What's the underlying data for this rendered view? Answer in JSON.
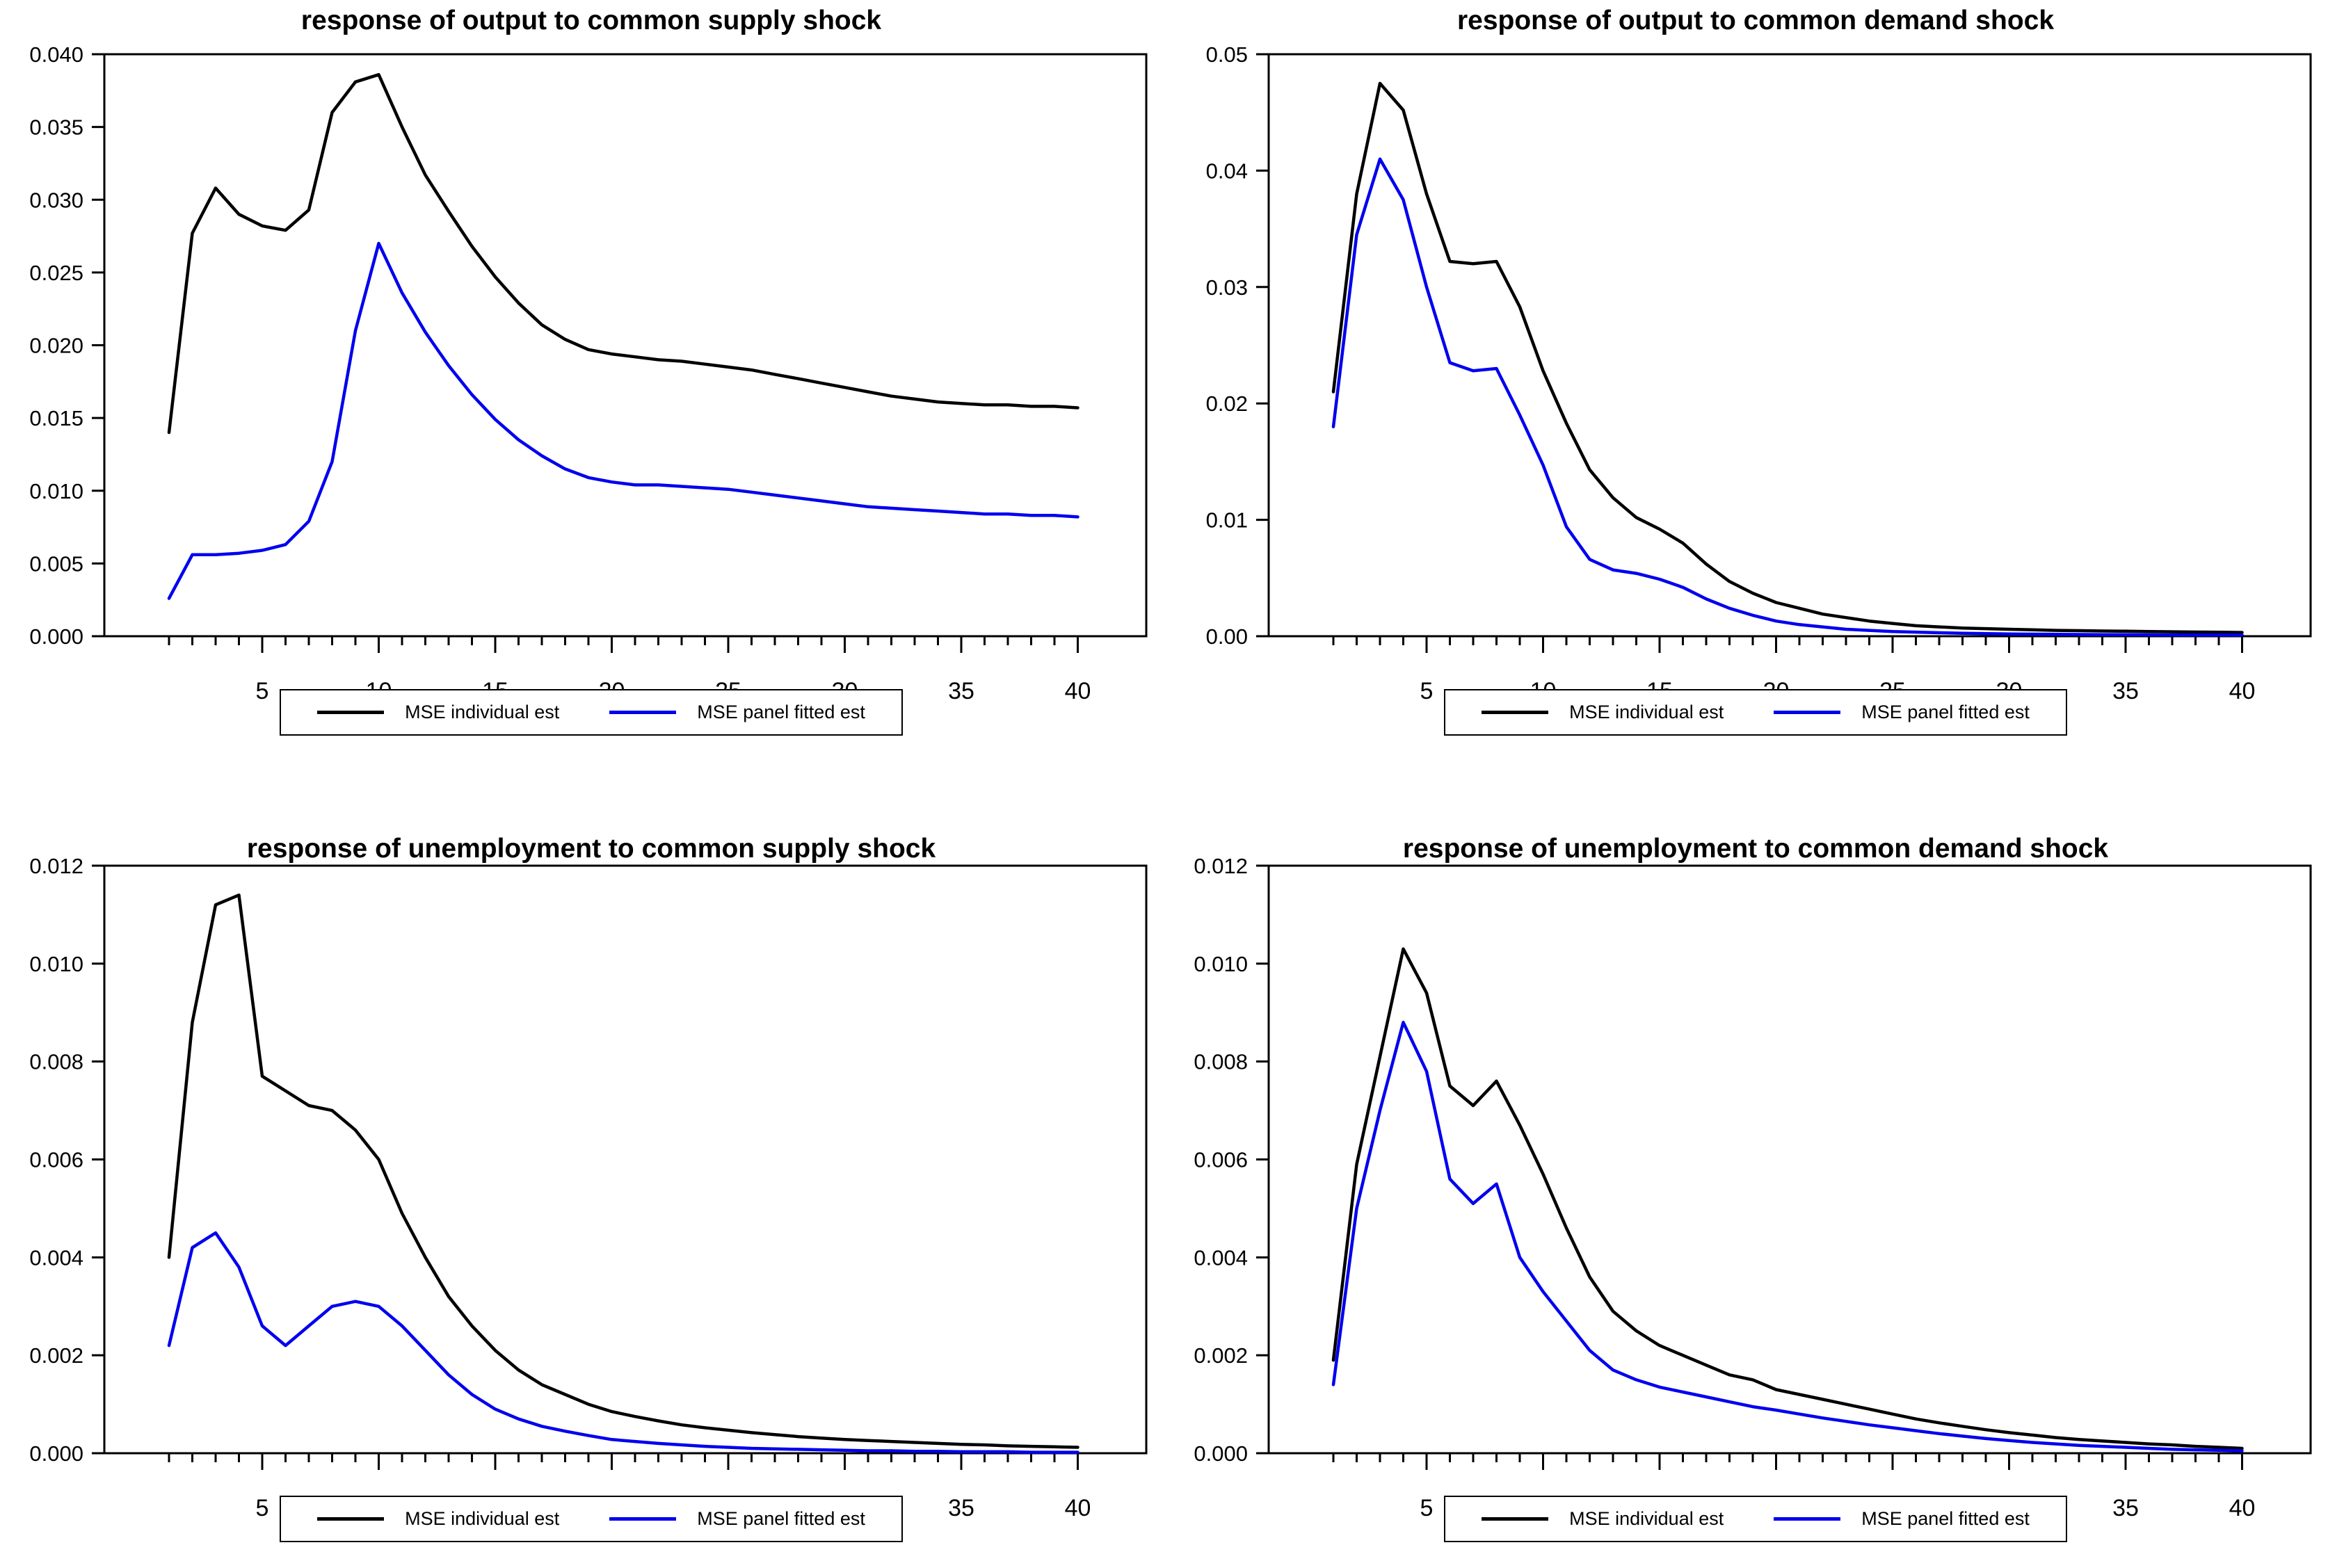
{
  "colors": {
    "background": "#ffffff",
    "frame": "#000000",
    "series_individual": "#000000",
    "series_panel_fitted": "#0000ee"
  },
  "legend": {
    "items": [
      "MSE individual est",
      "MSE panel fitted est"
    ]
  },
  "chart_data": [
    {
      "id": "output-supply",
      "type": "line",
      "title": "response of output to common supply shock",
      "xlabel": "",
      "ylabel": "",
      "x_range": [
        1,
        40
      ],
      "x_step": 1,
      "xticks_major": [
        5,
        10,
        15,
        20,
        25,
        30,
        35,
        40
      ],
      "xticks_minor_every": 1,
      "ylim": [
        0,
        0.04
      ],
      "ytick_labels": [
        "0.040",
        "0.035",
        "0.030",
        "0.025",
        "0.020",
        "0.015",
        "0.010",
        "0.005",
        "0.000"
      ],
      "grid": false,
      "legend_position": "bottom-center",
      "series": [
        {
          "name": "MSE individual est",
          "color": "#000000",
          "values": [
            0.014,
            0.0277,
            0.0308,
            0.029,
            0.0282,
            0.0279,
            0.0293,
            0.036,
            0.0381,
            0.0386,
            0.035,
            0.0317,
            0.0292,
            0.0268,
            0.0247,
            0.0229,
            0.0214,
            0.0204,
            0.0197,
            0.0194,
            0.0192,
            0.019,
            0.0189,
            0.0187,
            0.0185,
            0.0183,
            0.018,
            0.0177,
            0.0174,
            0.0171,
            0.0168,
            0.0165,
            0.0163,
            0.0161,
            0.016,
            0.0159,
            0.0159,
            0.0158,
            0.0158,
            0.0157
          ]
        },
        {
          "name": "MSE panel fitted est",
          "color": "#0000ee",
          "values": [
            0.0026,
            0.0056,
            0.0056,
            0.0057,
            0.0059,
            0.0063,
            0.0079,
            0.012,
            0.021,
            0.027,
            0.0236,
            0.0209,
            0.0186,
            0.0166,
            0.0149,
            0.0135,
            0.0124,
            0.0115,
            0.0109,
            0.0106,
            0.0104,
            0.0104,
            0.0103,
            0.0102,
            0.0101,
            0.0099,
            0.0097,
            0.0095,
            0.0093,
            0.0091,
            0.0089,
            0.0088,
            0.0087,
            0.0086,
            0.0085,
            0.0084,
            0.0084,
            0.0083,
            0.0083,
            0.0082
          ]
        }
      ]
    },
    {
      "id": "output-demand",
      "type": "line",
      "title": "response of output to common demand shock",
      "xlabel": "",
      "ylabel": "",
      "x_range": [
        1,
        40
      ],
      "x_step": 1,
      "xticks_major": [
        5,
        10,
        15,
        20,
        25,
        30,
        35,
        40
      ],
      "xticks_minor_every": 1,
      "ylim": [
        0,
        0.05
      ],
      "ytick_labels": [
        "0.05",
        "0.04",
        "0.03",
        "0.02",
        "0.01",
        "0.00"
      ],
      "grid": false,
      "legend_position": "bottom-center",
      "series": [
        {
          "name": "MSE individual est",
          "color": "#000000",
          "values": [
            0.021,
            0.038,
            0.0475,
            0.0452,
            0.038,
            0.0322,
            0.032,
            0.0322,
            0.0283,
            0.0228,
            0.0183,
            0.0143,
            0.0119,
            0.0102,
            0.0092,
            0.008,
            0.0062,
            0.0047,
            0.0037,
            0.0029,
            0.0024,
            0.0019,
            0.0016,
            0.0013,
            0.0011,
            0.0009,
            0.0008,
            0.0007,
            0.00065,
            0.0006,
            0.00055,
            0.0005,
            0.00048,
            0.00045,
            0.00043,
            0.0004,
            0.00038,
            0.00036,
            0.00034,
            0.00032
          ]
        },
        {
          "name": "MSE panel fitted est",
          "color": "#0000ee",
          "values": [
            0.018,
            0.0345,
            0.041,
            0.0375,
            0.03,
            0.0235,
            0.0228,
            0.023,
            0.019,
            0.0147,
            0.0094,
            0.0066,
            0.0057,
            0.0054,
            0.0049,
            0.0042,
            0.0032,
            0.0024,
            0.0018,
            0.0013,
            0.001,
            0.0008,
            0.0006,
            0.0005,
            0.0004,
            0.00035,
            0.0003,
            0.00025,
            0.00022,
            0.0002,
            0.00018,
            0.00016,
            0.00015,
            0.00014,
            0.00013,
            0.00012,
            0.00011,
            0.0001,
            0.0001,
            0.0001
          ]
        }
      ]
    },
    {
      "id": "unemployment-supply",
      "type": "line",
      "title": "response of unemployment to common supply shock",
      "xlabel": "",
      "ylabel": "",
      "x_range": [
        1,
        40
      ],
      "x_step": 1,
      "xticks_major": [
        5,
        10,
        15,
        20,
        25,
        30,
        35,
        40
      ],
      "xticks_minor_every": 1,
      "ylim": [
        0,
        0.012
      ],
      "ytick_labels": [
        "0.012",
        "0.010",
        "0.008",
        "0.006",
        "0.004",
        "0.002",
        "0.000"
      ],
      "grid": false,
      "legend_position": "bottom-center",
      "series": [
        {
          "name": "MSE individual est",
          "color": "#000000",
          "values": [
            0.004,
            0.0088,
            0.0112,
            0.0114,
            0.0077,
            0.0074,
            0.0071,
            0.007,
            0.0066,
            0.006,
            0.0049,
            0.004,
            0.0032,
            0.0026,
            0.0021,
            0.0017,
            0.0014,
            0.0012,
            0.001,
            0.00085,
            0.00075,
            0.00066,
            0.00058,
            0.00052,
            0.00047,
            0.00042,
            0.00038,
            0.00034,
            0.00031,
            0.00028,
            0.00026,
            0.00024,
            0.00022,
            0.0002,
            0.00018,
            0.00017,
            0.00015,
            0.00014,
            0.00013,
            0.00012
          ]
        },
        {
          "name": "MSE panel fitted est",
          "color": "#0000ee",
          "values": [
            0.0022,
            0.0042,
            0.0045,
            0.0038,
            0.0026,
            0.0022,
            0.0026,
            0.003,
            0.0031,
            0.003,
            0.0026,
            0.0021,
            0.0016,
            0.0012,
            0.0009,
            0.0007,
            0.00055,
            0.00045,
            0.00036,
            0.00028,
            0.00024,
            0.0002,
            0.00017,
            0.00014,
            0.00012,
            0.0001,
            9e-05,
            8e-05,
            7e-05,
            6e-05,
            5e-05,
            5e-05,
            4e-05,
            4e-05,
            3e-05,
            3e-05,
            3e-05,
            2e-05,
            2e-05,
            2e-05
          ]
        }
      ]
    },
    {
      "id": "unemployment-demand",
      "type": "line",
      "title": "response of unemployment to common demand shock",
      "xlabel": "",
      "ylabel": "",
      "x_range": [
        1,
        40
      ],
      "x_step": 1,
      "xticks_major": [
        5,
        10,
        15,
        20,
        25,
        30,
        35,
        40
      ],
      "xticks_minor_every": 1,
      "ylim": [
        0,
        0.012
      ],
      "ytick_labels": [
        "0.012",
        "0.010",
        "0.008",
        "0.006",
        "0.004",
        "0.002",
        "0.000"
      ],
      "grid": false,
      "legend_position": "bottom-center",
      "series": [
        {
          "name": "MSE individual est",
          "color": "#000000",
          "values": [
            0.0019,
            0.0059,
            0.0081,
            0.0103,
            0.0094,
            0.0075,
            0.0071,
            0.0076,
            0.0067,
            0.0057,
            0.0046,
            0.0036,
            0.0029,
            0.0025,
            0.0022,
            0.002,
            0.0018,
            0.0016,
            0.0015,
            0.0013,
            0.0012,
            0.0011,
            0.001,
            0.0009,
            0.0008,
            0.0007,
            0.00062,
            0.00055,
            0.00048,
            0.00042,
            0.00037,
            0.00032,
            0.00028,
            0.00025,
            0.00022,
            0.00019,
            0.00017,
            0.00014,
            0.00012,
            0.0001
          ]
        },
        {
          "name": "MSE panel fitted est",
          "color": "#0000ee",
          "values": [
            0.0014,
            0.005,
            0.007,
            0.0088,
            0.0078,
            0.0056,
            0.0051,
            0.0055,
            0.004,
            0.0033,
            0.0027,
            0.0021,
            0.0017,
            0.0015,
            0.00135,
            0.00125,
            0.00115,
            0.00105,
            0.00095,
            0.00088,
            0.0008,
            0.00072,
            0.00065,
            0.00058,
            0.00052,
            0.00046,
            0.0004,
            0.00035,
            0.0003,
            0.00026,
            0.00022,
            0.00019,
            0.00016,
            0.00014,
            0.00012,
            0.0001,
            8e-05,
            7e-05,
            6e-05,
            5e-05
          ]
        }
      ]
    }
  ]
}
